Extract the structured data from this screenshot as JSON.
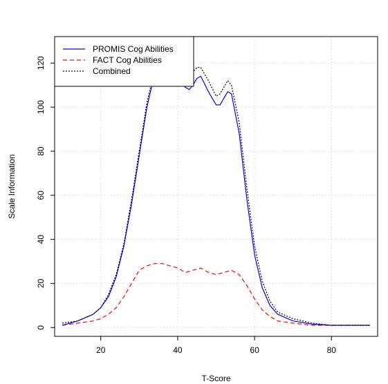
{
  "chart_data": {
    "type": "line",
    "title": "",
    "xlabel": "T-Score",
    "ylabel": "Scale Information",
    "xlim": [
      8,
      92
    ],
    "ylim": [
      -4,
      132
    ],
    "xticks": [
      20,
      40,
      60,
      80
    ],
    "yticks": [
      0,
      20,
      40,
      60,
      80,
      100,
      120
    ],
    "grid": true,
    "legend_position": "top-left",
    "series": [
      {
        "name": "PROMIS Cog Abilities",
        "color": "#0000ff",
        "dash": "solid",
        "x": [
          10,
          14,
          18,
          20,
          22,
          24,
          26,
          28,
          30,
          32,
          34,
          36,
          38,
          40,
          42,
          43,
          44,
          45,
          46,
          48,
          50,
          51,
          52,
          53,
          54,
          56,
          58,
          60,
          62,
          64,
          66,
          70,
          75,
          80,
          85,
          90
        ],
        "y": [
          1,
          3,
          6,
          9,
          14,
          23,
          37,
          56,
          78,
          100,
          115,
          120,
          118,
          113,
          109,
          108,
          110,
          113,
          114,
          107,
          101,
          101,
          104,
          107,
          106,
          88,
          58,
          33,
          18,
          10,
          6,
          3,
          1.5,
          1,
          1,
          1
        ]
      },
      {
        "name": "FACT Cog Abilities",
        "color": "#ff0000",
        "dash": "dashed",
        "x": [
          10,
          14,
          18,
          20,
          22,
          24,
          26,
          28,
          30,
          32,
          34,
          36,
          38,
          40,
          42,
          44,
          46,
          48,
          50,
          52,
          54,
          56,
          58,
          60,
          62,
          64,
          66,
          70,
          75,
          80,
          85,
          90
        ],
        "y": [
          1,
          2,
          3,
          4,
          6,
          9,
          14,
          20,
          26,
          28,
          29,
          29,
          28,
          27,
          25,
          26,
          27,
          25,
          24,
          25,
          26,
          24,
          19,
          13,
          8,
          5,
          3,
          2,
          1,
          1,
          1,
          1
        ]
      },
      {
        "name": "Combined",
        "color": "#000000",
        "dash": "dotted",
        "x": [
          10,
          14,
          18,
          20,
          22,
          24,
          26,
          28,
          30,
          32,
          34,
          36,
          38,
          40,
          42,
          43,
          44,
          45,
          46,
          48,
          50,
          51,
          52,
          53,
          54,
          56,
          58,
          60,
          62,
          64,
          66,
          70,
          75,
          80,
          85,
          90
        ],
        "y": [
          2,
          3,
          6,
          9,
          15,
          24,
          38,
          58,
          80,
          102,
          117,
          122,
          121,
          117,
          113,
          113,
          116,
          118,
          118,
          112,
          105,
          106,
          109,
          112,
          110,
          93,
          63,
          37,
          21,
          12,
          7,
          4,
          2,
          1,
          1,
          1
        ]
      }
    ]
  }
}
